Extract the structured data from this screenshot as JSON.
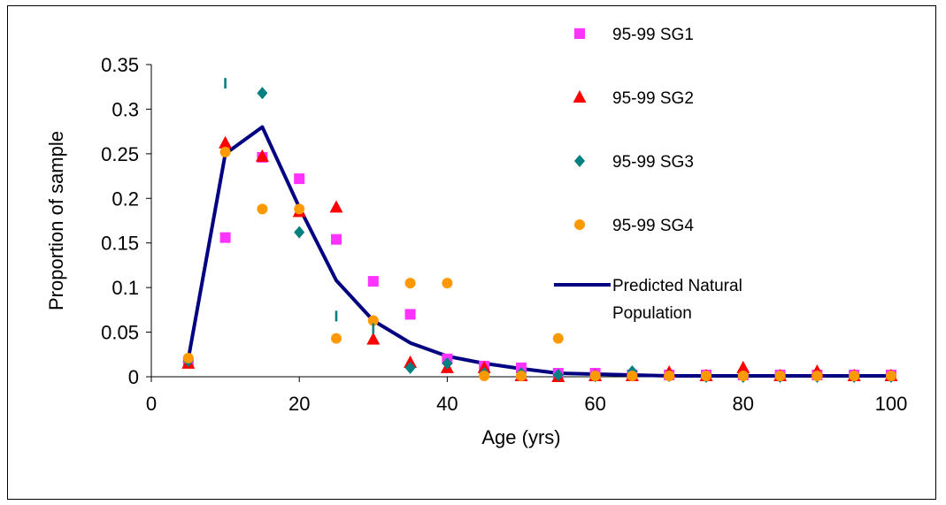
{
  "chart_data": {
    "type": "scatter",
    "xlabel": "Age (yrs)",
    "ylabel": "Proportion of sample",
    "xlim": [
      0,
      100
    ],
    "ylim": [
      0,
      0.35
    ],
    "x_ticks": [
      "0",
      "20",
      "40",
      "60",
      "80",
      "100"
    ],
    "y_ticks": [
      "0",
      "0.05",
      "0.1",
      "0.15",
      "0.2",
      "0.25",
      "0.3",
      "0.35"
    ],
    "grid": false,
    "legend_position": "right",
    "series": [
      {
        "name": "95-99 SG1",
        "marker": "square",
        "color": "#ff33ff",
        "points": [
          [
            5,
            0.016
          ],
          [
            10,
            0.156
          ],
          [
            15,
            0.246
          ],
          [
            20,
            0.222
          ],
          [
            25,
            0.154
          ],
          [
            30,
            0.107
          ],
          [
            35,
            0.07
          ],
          [
            40,
            0.02
          ],
          [
            45,
            0.012
          ],
          [
            50,
            0.01
          ],
          [
            55,
            0.004
          ],
          [
            60,
            0.004
          ],
          [
            65,
            0.002
          ],
          [
            70,
            0.002
          ],
          [
            75,
            0.002
          ],
          [
            80,
            0.002
          ],
          [
            85,
            0.002
          ],
          [
            90,
            0.002
          ],
          [
            95,
            0.002
          ],
          [
            100,
            0.002
          ]
        ]
      },
      {
        "name": "95-99 SG2",
        "marker": "triangle",
        "color": "#ff0000",
        "points": [
          [
            5,
            0.015
          ],
          [
            10,
            0.262
          ],
          [
            15,
            0.247
          ],
          [
            20,
            0.185
          ],
          [
            25,
            0.19
          ],
          [
            30,
            0.042
          ],
          [
            35,
            0.016
          ],
          [
            40,
            0.01
          ],
          [
            45,
            0.01
          ],
          [
            50,
            0.001
          ],
          [
            55,
            0.0
          ],
          [
            60,
            0.001
          ],
          [
            65,
            0.001
          ],
          [
            70,
            0.005
          ],
          [
            75,
            0.001
          ],
          [
            80,
            0.01
          ],
          [
            85,
            0.001
          ],
          [
            90,
            0.006
          ],
          [
            95,
            0.001
          ],
          [
            100,
            0.001
          ]
        ]
      },
      {
        "name": "95-99 SG3",
        "marker": "diamond",
        "color": "#008080",
        "points": [
          [
            5,
            0.018
          ],
          [
            15,
            0.318
          ],
          [
            20,
            0.162
          ],
          [
            35,
            0.01
          ],
          [
            40,
            0.015
          ],
          [
            45,
            0.004
          ],
          [
            50,
            0.004
          ],
          [
            55,
            0.002
          ],
          [
            60,
            0.001
          ],
          [
            65,
            0.006
          ],
          [
            70,
            0.001
          ],
          [
            75,
            0.0
          ],
          [
            80,
            0.0
          ],
          [
            85,
            0.0
          ],
          [
            90,
            0.0
          ],
          [
            95,
            0.0
          ],
          [
            100,
            0.0
          ]
        ]
      },
      {
        "name": "95-99 SG4",
        "marker": "circle",
        "color": "#ff9900",
        "points": [
          [
            5,
            0.021
          ],
          [
            10,
            0.252
          ],
          [
            15,
            0.188
          ],
          [
            20,
            0.188
          ],
          [
            25,
            0.043
          ],
          [
            30,
            0.063
          ],
          [
            35,
            0.105
          ],
          [
            40,
            0.105
          ],
          [
            45,
            0.001
          ],
          [
            50,
            0.001
          ],
          [
            55,
            0.043
          ],
          [
            60,
            0.001
          ],
          [
            65,
            0.001
          ],
          [
            70,
            0.001
          ],
          [
            75,
            0.001
          ],
          [
            80,
            0.001
          ],
          [
            85,
            0.001
          ],
          [
            90,
            0.001
          ],
          [
            95,
            0.001
          ],
          [
            100,
            0.001
          ]
        ]
      },
      {
        "name": "Predicted Natural Population",
        "name_lines": [
          "Predicted Natural",
          "Population"
        ],
        "marker": "line",
        "color": "#000080",
        "points": [
          [
            5,
            0.02
          ],
          [
            10,
            0.25
          ],
          [
            15,
            0.28
          ],
          [
            20,
            0.19
          ],
          [
            25,
            0.108
          ],
          [
            30,
            0.063
          ],
          [
            35,
            0.038
          ],
          [
            40,
            0.023
          ],
          [
            45,
            0.015
          ],
          [
            50,
            0.009
          ],
          [
            55,
            0.004
          ],
          [
            60,
            0.003
          ],
          [
            65,
            0.002
          ],
          [
            70,
            0.001
          ],
          [
            75,
            0.001
          ],
          [
            80,
            0.001
          ],
          [
            85,
            0.001
          ],
          [
            90,
            0.001
          ],
          [
            95,
            0.001
          ],
          [
            100,
            0.001
          ]
        ]
      }
    ],
    "extra_marks": {
      "marker": "bar",
      "color": "#008080",
      "points": [
        [
          10,
          0.329
        ],
        [
          25,
          0.068
        ],
        [
          30,
          0.054
        ]
      ]
    }
  }
}
